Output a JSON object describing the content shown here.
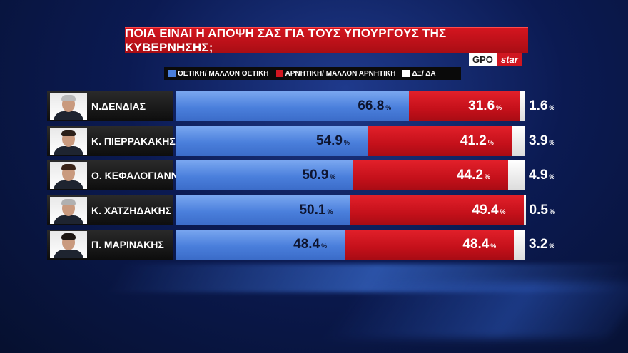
{
  "title": "ΠΟΙΑ ΕΙΝΑΙ Η ΑΠΟΨΗ ΣΑΣ ΓΙΑ ΤΟΥΣ ΥΠΟΥΡΓΟΥΣ ΤΗΣ ΚΥΒΕΡΝΗΣΗΣ;",
  "brand": {
    "gpo": "GPO",
    "star": "star"
  },
  "percent_sign": "%",
  "colors": {
    "positive": "#4a7fdc",
    "negative": "#c4101a",
    "dk": "#ffffff",
    "title_bg": "#c0111a"
  },
  "chart_data": {
    "type": "bar",
    "orientation": "horizontal",
    "stacked": true,
    "title": "ΠΟΙΑ ΕΙΝΑΙ Η ΑΠΟΨΗ ΣΑΣ ΓΙΑ ΤΟΥΣ ΥΠΟΥΡΓΟΥΣ ΤΗΣ ΚΥΒΕΡΝΗΣΗΣ;",
    "categories": [
      "Ν.ΔΕΝΔΙΑΣ",
      "Κ. ΠΙΕΡΡΑΚΑΚΗΣ",
      "Ο. ΚΕΦΑΛΟΓΙΑΝΝΗ",
      "Κ. ΧΑΤΖΗΔΑΚΗΣ",
      "Π. ΜΑΡΙΝΑΚΗΣ"
    ],
    "series": [
      {
        "name": "ΘΕΤΙΚΗ/ ΜΑΛΛΟΝ ΘΕΤΙΚΗ",
        "values": [
          66.8,
          54.9,
          50.9,
          50.1,
          48.4
        ]
      },
      {
        "name": "ΑΡΝΗΤΙΚΗ/ ΜΑΛΛΟΝ ΑΡΝΗΤΙΚΗ",
        "values": [
          31.6,
          41.2,
          44.2,
          49.4,
          48.4
        ]
      },
      {
        "name": "ΔΞ/ ΔΑ",
        "values": [
          1.6,
          3.9,
          4.9,
          0.5,
          3.2
        ]
      }
    ],
    "legend": "top",
    "grid": false
  }
}
